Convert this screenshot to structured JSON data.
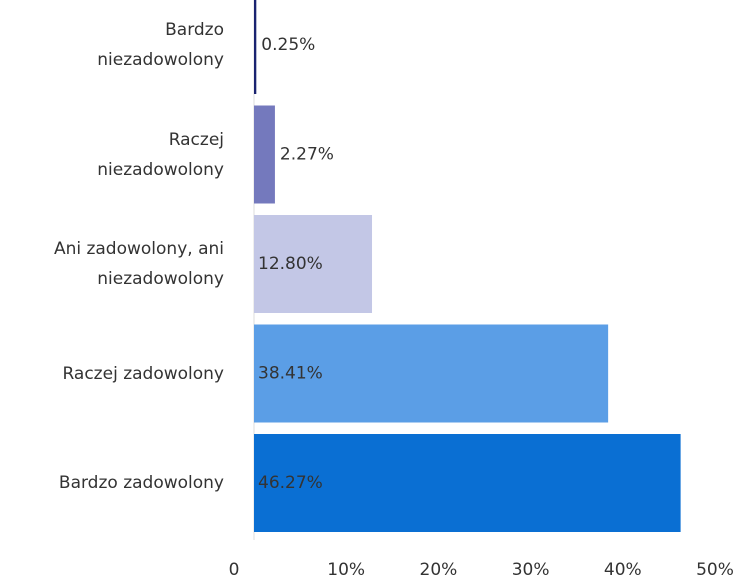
{
  "chart_data": {
    "type": "bar",
    "orientation": "horizontal",
    "categories": [
      "Bardzo\nniezadowolony",
      "Raczej\nniezadowolony",
      "Ani zadowolony, ani\nniezadowolony",
      "Raczej zadowolony",
      "Bardzo zadowolony"
    ],
    "values": [
      0.25,
      2.27,
      12.8,
      38.41,
      46.27
    ],
    "value_labels": [
      "0.25%",
      "2.27%",
      "12.80%",
      "38.41%",
      "46.27%"
    ],
    "colors": [
      "#1a2370",
      "#7479bd",
      "#c3c7e6",
      "#5b9ee6",
      "#0a6fd3"
    ],
    "xlim": [
      0,
      50
    ],
    "xticks": [
      0,
      {
        "value": 10,
        "label": "10%"
      },
      {
        "value": 20,
        "label": "20%"
      },
      {
        "value": 30,
        "label": "30%"
      },
      {
        "value": 40,
        "label": "40%"
      },
      {
        "value": 50,
        "label": "50%"
      }
    ]
  }
}
